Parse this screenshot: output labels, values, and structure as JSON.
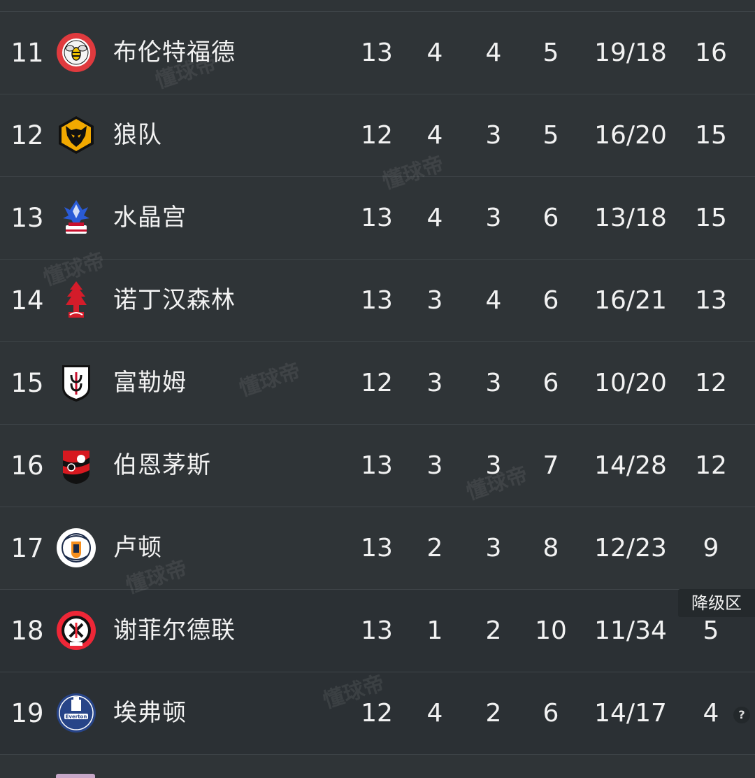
{
  "zone_badge": "降级区",
  "help_icon_glyph": "?",
  "watermark": "懂球帝",
  "rows": [
    {
      "rank": "11",
      "team": "布伦特福德",
      "crest": "brentford-crest-icon",
      "played": "13",
      "won": "4",
      "drawn": "4",
      "lost": "5",
      "goals": "19/18",
      "points": "16"
    },
    {
      "rank": "12",
      "team": "狼队",
      "crest": "wolves-crest-icon",
      "played": "12",
      "won": "4",
      "drawn": "3",
      "lost": "5",
      "goals": "16/20",
      "points": "15"
    },
    {
      "rank": "13",
      "team": "水晶宫",
      "crest": "crystal-palace-crest-icon",
      "played": "13",
      "won": "4",
      "drawn": "3",
      "lost": "6",
      "goals": "13/18",
      "points": "15"
    },
    {
      "rank": "14",
      "team": "诺丁汉森林",
      "crest": "nottingham-forest-crest-icon",
      "played": "13",
      "won": "3",
      "drawn": "4",
      "lost": "6",
      "goals": "16/21",
      "points": "13"
    },
    {
      "rank": "15",
      "team": "富勒姆",
      "crest": "fulham-crest-icon",
      "played": "12",
      "won": "3",
      "drawn": "3",
      "lost": "6",
      "goals": "10/20",
      "points": "12"
    },
    {
      "rank": "16",
      "team": "伯恩茅斯",
      "crest": "bournemouth-crest-icon",
      "played": "13",
      "won": "3",
      "drawn": "3",
      "lost": "7",
      "goals": "14/28",
      "points": "12"
    },
    {
      "rank": "17",
      "team": "卢顿",
      "crest": "luton-town-crest-icon",
      "played": "13",
      "won": "2",
      "drawn": "3",
      "lost": "8",
      "goals": "12/23",
      "points": "9"
    },
    {
      "rank": "18",
      "team": "谢菲尔德联",
      "crest": "sheffield-united-crest-icon",
      "played": "13",
      "won": "1",
      "drawn": "2",
      "lost": "10",
      "goals": "11/34",
      "points": "5"
    },
    {
      "rank": "19",
      "team": "埃弗顿",
      "crest": "everton-crest-icon",
      "played": "12",
      "won": "4",
      "drawn": "2",
      "lost": "6",
      "goals": "14/17",
      "points": "4"
    }
  ]
}
